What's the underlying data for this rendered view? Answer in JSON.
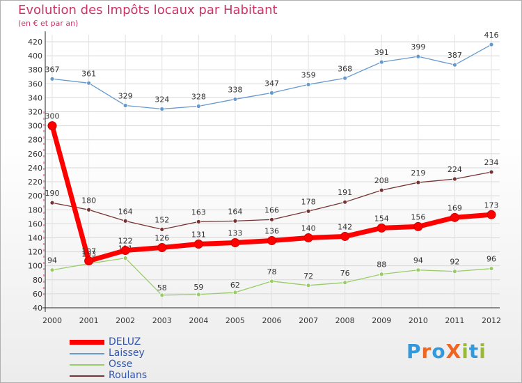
{
  "chart_data": {
    "type": "line",
    "title": "Evolution des Impôts locaux par Habitant",
    "subtitle": "(en € et par an)",
    "x": [
      "2000",
      "2001",
      "2002",
      "2003",
      "2004",
      "2005",
      "2006",
      "2007",
      "2008",
      "2009",
      "2010",
      "2011",
      "2012"
    ],
    "ylim": [
      40,
      420
    ],
    "yticks": [
      40,
      60,
      80,
      100,
      120,
      140,
      160,
      180,
      200,
      220,
      240,
      260,
      280,
      300,
      320,
      340,
      360,
      380,
      400,
      420
    ],
    "grid": true,
    "legend_position": "bottom-left",
    "series": [
      {
        "name": "DELUZ",
        "color": "#ff0000",
        "values": [
          300,
          107,
          122,
          126,
          131,
          133,
          136,
          140,
          142,
          154,
          156,
          169,
          173
        ]
      },
      {
        "name": "Laissey",
        "color": "#6699cc",
        "values": [
          367,
          361,
          329,
          324,
          328,
          338,
          347,
          359,
          368,
          391,
          399,
          387,
          416
        ]
      },
      {
        "name": "Osse",
        "color": "#99cc66",
        "values": [
          94,
          103,
          111,
          58,
          59,
          62,
          78,
          72,
          76,
          88,
          94,
          92,
          96
        ]
      },
      {
        "name": "Roulans",
        "color": "#773333",
        "values": [
          190,
          180,
          164,
          152,
          163,
          164,
          166,
          178,
          191,
          208,
          219,
          224,
          234
        ]
      }
    ],
    "data_labels": {
      "DELUZ": [
        "300",
        "107",
        "122",
        "126",
        "131",
        "133",
        "136",
        "140",
        "142",
        "154",
        "156",
        "169",
        "173"
      ],
      "Laissey": [
        "367",
        "361",
        "329",
        "324",
        "328",
        "338",
        "347",
        "359",
        "368",
        "391",
        "399",
        "387",
        "416"
      ],
      "Osse": [
        "94",
        "103",
        "111",
        "58",
        "59",
        "62",
        "78",
        "72",
        "76",
        "88",
        "94",
        "92",
        "96"
      ],
      "Roulans": [
        "190",
        "180",
        "164",
        "152",
        "163",
        "164",
        "166",
        "178",
        "191",
        "208",
        "219",
        "224",
        "234"
      ]
    }
  },
  "logo": {
    "text": "ProXiti",
    "letters": [
      "P",
      "r",
      "o",
      "X",
      "i",
      "t",
      "i"
    ],
    "colors": [
      "#3399dd",
      "#ee6622",
      "#3399dd",
      "#ee6622",
      "#99bb33",
      "#3399dd",
      "#99bb33"
    ]
  }
}
